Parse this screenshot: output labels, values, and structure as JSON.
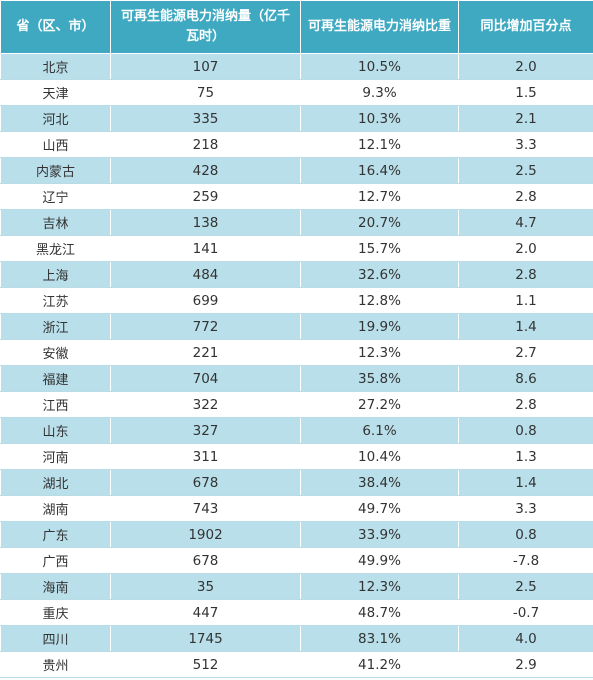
{
  "table": {
    "headers": [
      "省（区、市）",
      "可再生能源电力消纳量（亿千瓦时）",
      "可再生能源电力消纳比重",
      "同比增加百分点"
    ],
    "rows": [
      [
        "北京",
        "107",
        "10.5%",
        "2.0"
      ],
      [
        "天津",
        "75",
        "9.3%",
        "1.5"
      ],
      [
        "河北",
        "335",
        "10.3%",
        "2.1"
      ],
      [
        "山西",
        "218",
        "12.1%",
        "3.3"
      ],
      [
        "内蒙古",
        "428",
        "16.4%",
        "2.5"
      ],
      [
        "辽宁",
        "259",
        "12.7%",
        "2.8"
      ],
      [
        "吉林",
        "138",
        "20.7%",
        "4.7"
      ],
      [
        "黑龙江",
        "141",
        "15.7%",
        "2.0"
      ],
      [
        "上海",
        "484",
        "32.6%",
        "2.8"
      ],
      [
        "江苏",
        "699",
        "12.8%",
        "1.1"
      ],
      [
        "浙江",
        "772",
        "19.9%",
        "1.4"
      ],
      [
        "安徽",
        "221",
        "12.3%",
        "2.7"
      ],
      [
        "福建",
        "704",
        "35.8%",
        "8.6"
      ],
      [
        "江西",
        "322",
        "27.2%",
        "2.8"
      ],
      [
        "山东",
        "327",
        "6.1%",
        "0.8"
      ],
      [
        "河南",
        "311",
        "10.4%",
        "1.3"
      ],
      [
        "湖北",
        "678",
        "38.4%",
        "1.4"
      ],
      [
        "湖南",
        "743",
        "49.7%",
        "3.3"
      ],
      [
        "广东",
        "1902",
        "33.9%",
        "0.8"
      ],
      [
        "广西",
        "678",
        "49.9%",
        "-7.8"
      ],
      [
        "海南",
        "35",
        "12.3%",
        "2.5"
      ],
      [
        "重庆",
        "447",
        "48.7%",
        "-0.7"
      ],
      [
        "四川",
        "1745",
        "83.1%",
        "4.0"
      ],
      [
        "贵州",
        "512",
        "41.2%",
        "2.9"
      ]
    ]
  },
  "colors": {
    "header_bg": "#3fa9c2",
    "row_stripe": "#b9dfea"
  }
}
